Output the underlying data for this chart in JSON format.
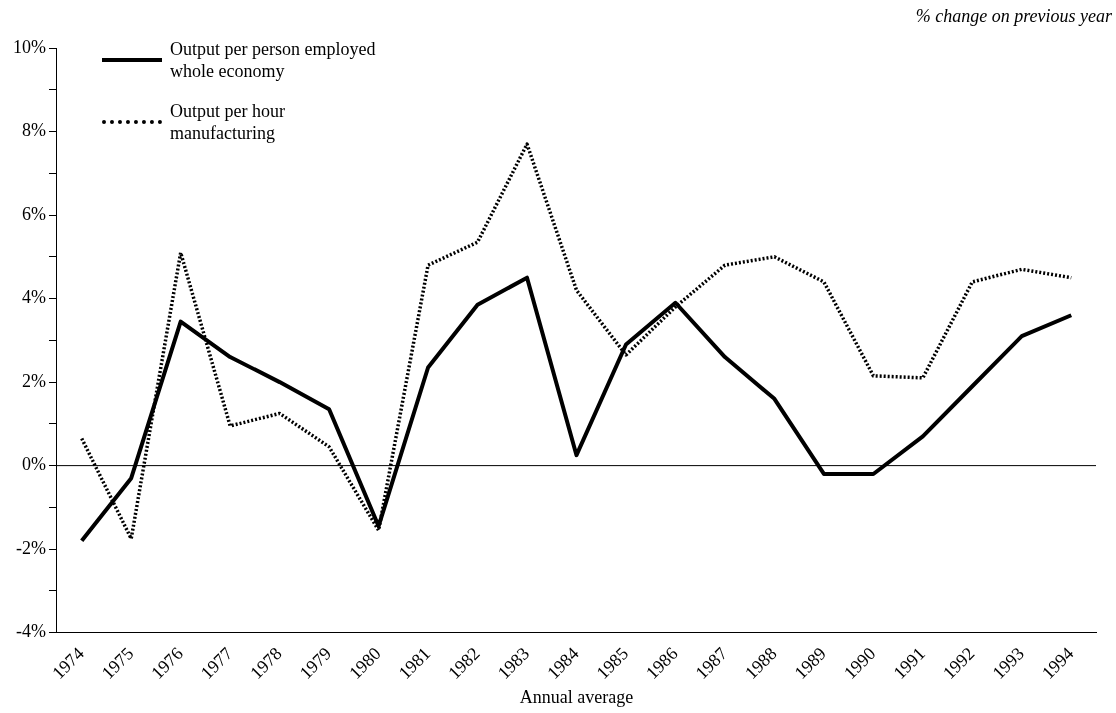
{
  "chart_data": {
    "type": "line",
    "ylabel": "% change on previous year",
    "xlabel": "Annual average",
    "categories": [
      "1974",
      "1975",
      "1976",
      "1977",
      "1978",
      "1979",
      "1980",
      "1981",
      "1982",
      "1983",
      "1984",
      "1985",
      "1986",
      "1987",
      "1988",
      "1989",
      "1990",
      "1991",
      "1992",
      "1993",
      "1994"
    ],
    "series": [
      {
        "name": "Output per person employed whole economy",
        "color": "#000000",
        "line_style": "solid",
        "values": [
          -1.8,
          -0.3,
          3.45,
          2.6,
          2.0,
          1.35,
          -1.45,
          2.35,
          3.85,
          4.5,
          0.25,
          2.9,
          3.9,
          2.6,
          1.6,
          -0.2,
          -0.2,
          0.7,
          1.9,
          3.1,
          3.6
        ]
      },
      {
        "name": "Output per hour manufacturing",
        "color": "#000000",
        "line_style": "dotted",
        "values": [
          0.65,
          -1.75,
          5.1,
          0.95,
          1.25,
          0.45,
          -1.55,
          4.8,
          5.35,
          7.7,
          4.2,
          2.65,
          3.8,
          4.8,
          5.0,
          4.4,
          2.15,
          2.1,
          4.4,
          4.7,
          4.5
        ]
      }
    ],
    "ylim": [
      -4,
      10
    ],
    "yticks": [
      {
        "value": -4,
        "label": "-4%"
      },
      {
        "value": -3,
        "label": null
      },
      {
        "value": -2,
        "label": "-2%"
      },
      {
        "value": -1,
        "label": null
      },
      {
        "value": 0,
        "label": "0%"
      },
      {
        "value": 1,
        "label": null
      },
      {
        "value": 2,
        "label": "2%"
      },
      {
        "value": 3,
        "label": null
      },
      {
        "value": 4,
        "label": "4%"
      },
      {
        "value": 5,
        "label": null
      },
      {
        "value": 6,
        "label": "6%"
      },
      {
        "value": 7,
        "label": null
      },
      {
        "value": 8,
        "label": "8%"
      },
      {
        "value": 9,
        "label": null
      },
      {
        "value": 10,
        "label": "10%"
      }
    ],
    "ref_lines": [
      {
        "axis": "y",
        "value": 0,
        "color": "#000000"
      }
    ],
    "grid": false,
    "legend": "top left",
    "marker": "none"
  }
}
